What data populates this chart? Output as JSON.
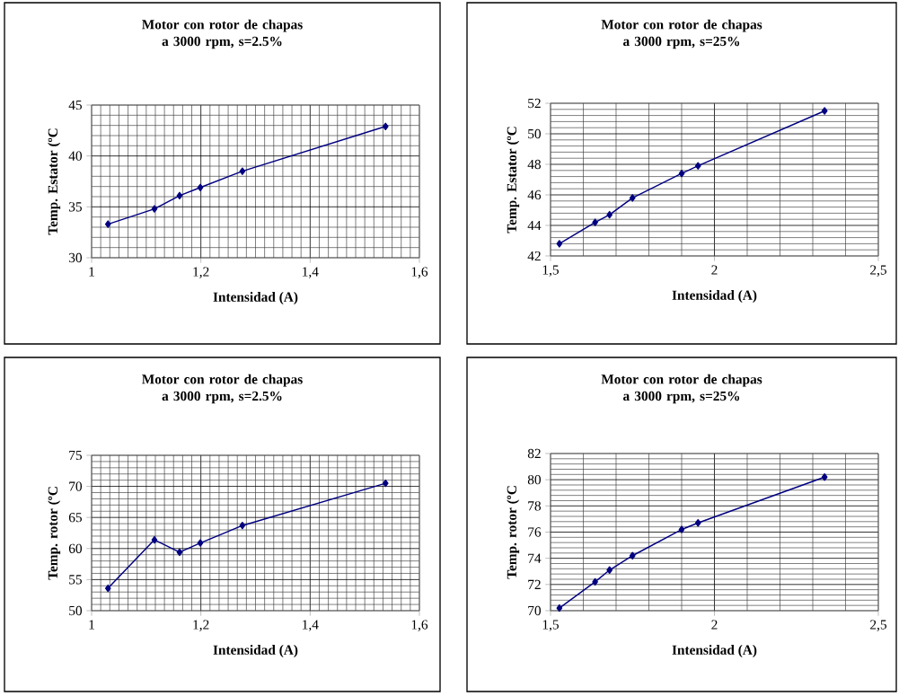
{
  "chart_data": [
    {
      "type": "line",
      "title": "Motor con rotor de chapas a 3000 rpm, s=2.5%",
      "xlabel": "Intensidad (A)",
      "ylabel": "Temp. Estator (ºC",
      "x": [
        1.03,
        1.115,
        1.161,
        1.199,
        1.276,
        1.538
      ],
      "series": [
        {
          "color": "#000080",
          "values": [
            33.3,
            34.8,
            36.1,
            36.9,
            38.5,
            42.9
          ]
        }
      ],
      "xlim": [
        1,
        1.6
      ],
      "xticks": [
        1,
        {
          "value": 1.2,
          "label": "1,2"
        },
        {
          "value": 1.4,
          "label": "1,4"
        },
        {
          "value": 1.6,
          "label": "1,6"
        }
      ],
      "ylim": [
        30,
        45
      ],
      "yticks": [
        30,
        35,
        40,
        45
      ],
      "grid": true,
      "marker": "diamond",
      "line_style": "solid"
    },
    {
      "type": "line",
      "title": "Motor con rotor de chapas a 3000 rpm, s=25%",
      "xlabel": "Intensidad (A)",
      "ylabel": "Temp. Estator (ºC",
      "x": [
        1.527,
        1.636,
        1.68,
        1.75,
        1.9,
        1.95,
        2.336
      ],
      "series": [
        {
          "color": "#000080",
          "values": [
            42.8,
            44.2,
            44.7,
            45.8,
            47.4,
            47.9,
            51.5
          ]
        }
      ],
      "xlim": [
        1.5,
        2.5
      ],
      "xticks": [
        {
          "value": 1.5,
          "label": "1,5"
        },
        2,
        {
          "value": 2.5,
          "label": "2,5"
        }
      ],
      "ylim": [
        42,
        52
      ],
      "yticks": [
        42,
        44,
        46,
        48,
        50,
        52
      ],
      "grid": true,
      "marker": "diamond",
      "line_style": "solid"
    },
    {
      "type": "line",
      "title": "Motor con rotor de chapas a 3000 rpm, s=2.5%",
      "xlabel": "Intensidad (A)",
      "ylabel": "Temp. rotor (ºC",
      "x": [
        1.03,
        1.115,
        1.161,
        1.199,
        1.276,
        1.538
      ],
      "series": [
        {
          "color": "#000080",
          "values": [
            53.6,
            61.4,
            59.4,
            60.9,
            63.7,
            70.5
          ]
        }
      ],
      "xlim": [
        1,
        1.6
      ],
      "xticks": [
        1,
        {
          "value": 1.2,
          "label": "1,2"
        },
        {
          "value": 1.4,
          "label": "1,4"
        },
        {
          "value": 1.6,
          "label": "1,6"
        }
      ],
      "ylim": [
        50,
        75
      ],
      "yticks": [
        50,
        55,
        60,
        65,
        70,
        75
      ],
      "grid": true,
      "marker": "diamond",
      "line_style": "solid"
    },
    {
      "type": "line",
      "title": "Motor con rotor de chapas a 3000 rpm, s=25%",
      "xlabel": "Intensidad (A)",
      "ylabel": "Temp. rotor (ºC",
      "x": [
        1.527,
        1.636,
        1.68,
        1.75,
        1.9,
        1.95,
        2.336
      ],
      "series": [
        {
          "color": "#000080",
          "values": [
            70.2,
            72.2,
            73.1,
            74.2,
            76.2,
            76.7,
            80.2
          ]
        }
      ],
      "xlim": [
        1.5,
        2.5
      ],
      "xticks": [
        {
          "value": 1.5,
          "label": "1,5"
        },
        2,
        {
          "value": 2.5,
          "label": "2,5"
        }
      ],
      "ylim": [
        70,
        82
      ],
      "yticks": [
        70,
        72,
        74,
        76,
        78,
        80,
        82
      ],
      "grid": true,
      "marker": "diamond",
      "line_style": "solid"
    }
  ]
}
